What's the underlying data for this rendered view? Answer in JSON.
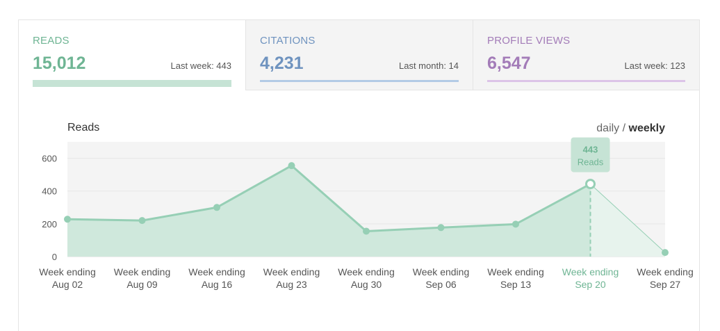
{
  "tabs": [
    {
      "label": "READS",
      "value": "15,012",
      "sub": "Last week: 443",
      "color": "#6fb594",
      "bar_color": "#c6e3d5"
    },
    {
      "label": "CITATIONS",
      "value": "4,231",
      "sub": "Last month: 14",
      "color": "#6f93bf",
      "bar_color": "#b3cbe6"
    },
    {
      "label": "PROFILE VIEWS",
      "value": "6,547",
      "sub": "Last week: 123",
      "color": "#a37cb8",
      "bar_color": "#dcc4e8"
    }
  ],
  "toggle": {
    "daily": "daily",
    "separator": " / ",
    "weekly": "weekly"
  },
  "tooltip": {
    "value": "443",
    "label": "Reads"
  },
  "chart_data": {
    "type": "area",
    "title": "Reads",
    "categories": [
      [
        "Week ending",
        "Aug 02"
      ],
      [
        "Week ending",
        "Aug 09"
      ],
      [
        "Week ending",
        "Aug 16"
      ],
      [
        "Week ending",
        "Aug 23"
      ],
      [
        "Week ending",
        "Aug 30"
      ],
      [
        "Week ending",
        "Sep 06"
      ],
      [
        "Week ending",
        "Sep 13"
      ],
      [
        "Week ending",
        "Sep 20"
      ],
      [
        "Week ending",
        "Sep 27"
      ]
    ],
    "values": [
      228,
      220,
      300,
      555,
      155,
      177,
      198,
      443,
      25
    ],
    "highlight_index": 7,
    "ylim": [
      0,
      700
    ],
    "yticks": [
      0,
      200,
      400,
      600
    ],
    "grid": true,
    "colors": {
      "line": "#96cfb5",
      "fill": "#cfe8dc",
      "fill_partial": "#e7f3ed",
      "highlight": "#6fb594",
      "plot_bg": "#f4f4f4",
      "tooltip_bg": "#c6e3d5"
    }
  }
}
